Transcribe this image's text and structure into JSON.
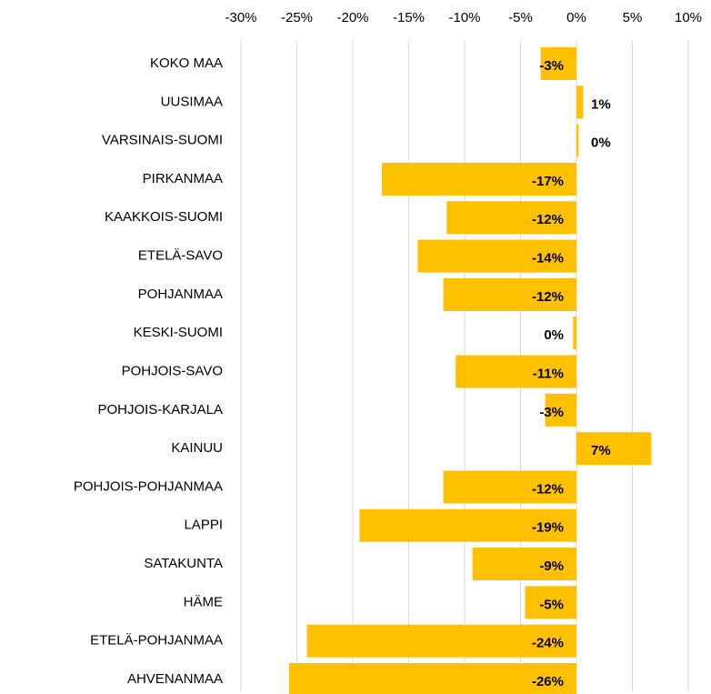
{
  "chart_data": {
    "type": "barh",
    "categories": [
      "KOKO MAA",
      "UUSIMAA",
      "VARSINAIS-SUOMI",
      "PIRKANMAA",
      "KAAKKOIS-SUOMI",
      "ETELÄ-SAVO",
      "POHJANMAA",
      "KESKI-SUOMI",
      "POHJOIS-SAVO",
      "POHJOIS-KARJALA",
      "KAINUU",
      "POHJOIS-POHJANMAA",
      "LAPPI",
      "SATAKUNTA",
      "HÄME",
      "ETELÄ-POHJANMAA",
      "AHVENANMAA"
    ],
    "values": [
      -3.2,
      0.6,
      0.2,
      -17.4,
      -11.6,
      -14.2,
      -11.9,
      -0.3,
      -10.8,
      -2.8,
      6.7,
      -11.9,
      -19.4,
      -9.3,
      -4.6,
      -24.1,
      -25.7
    ],
    "value_labels": [
      "-3%",
      "1%",
      "0%",
      "-17%",
      "-12%",
      "-14%",
      "-12%",
      "0%",
      "-11%",
      "-3%",
      "7%",
      "-12%",
      "-19%",
      "-9%",
      "-5%",
      "-24%",
      "-26%"
    ],
    "color": "#ffc000",
    "xlim": [
      -30,
      10
    ],
    "xticks": [
      {
        "value": -30,
        "label": "-30%"
      },
      {
        "value": -25,
        "label": "-25%"
      },
      {
        "value": -20,
        "label": "-20%"
      },
      {
        "value": -15,
        "label": "-15%"
      },
      {
        "value": -10,
        "label": "-10%"
      },
      {
        "value": -5,
        "label": "-5%"
      },
      {
        "value": 0,
        "label": "0%"
      },
      {
        "value": 5,
        "label": "5%"
      },
      {
        "value": 10,
        "label": "10%"
      }
    ],
    "grid": true
  }
}
